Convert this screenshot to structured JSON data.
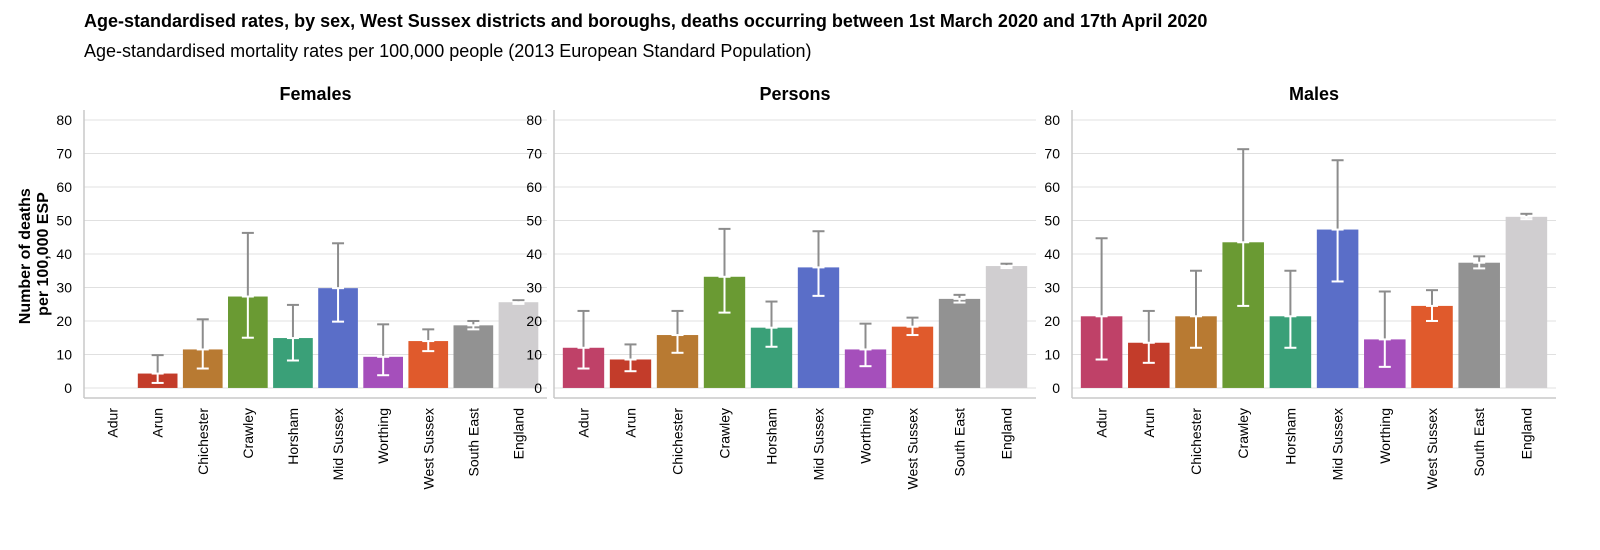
{
  "chart_data": {
    "type": "bar",
    "title": "Age-standardised rates, by sex, West Sussex districts and boroughs, deaths occurring between 1st March 2020 and 17th April 2020",
    "subtitle": "Age-standardised mortality rates per 100,000 people (2013 European Standard Population)",
    "ylabel_line1": "Number of deaths",
    "ylabel_line2": "per 100,000 ESP",
    "xlabel": "",
    "ylim": [
      -3,
      83
    ],
    "yticks": [
      0,
      10,
      20,
      30,
      40,
      50,
      60,
      70,
      80
    ],
    "grid": true,
    "legend": "none",
    "categories": [
      "Adur",
      "Arun",
      "Chichester",
      "Crawley",
      "Horsham",
      "Mid Sussex",
      "Worthing",
      "West Sussex",
      "South East",
      "England"
    ],
    "colors": [
      "#bf4168",
      "#c33c2a",
      "#b87a32",
      "#6a9a33",
      "#3aa078",
      "#5a6ec8",
      "#a54fbb",
      "#e05a2c",
      "#929292",
      "#d0ced0"
    ],
    "panels": [
      {
        "title": "Females",
        "values": [
          null,
          4.3,
          11.5,
          27.3,
          14.9,
          29.8,
          9.3,
          14.0,
          18.7,
          25.6
        ],
        "lower": [
          null,
          1.5,
          5.8,
          15.0,
          8.2,
          19.8,
          3.8,
          11.0,
          17.5,
          25.1
        ],
        "upper": [
          null,
          9.8,
          20.5,
          46.3,
          24.8,
          43.2,
          19.0,
          17.5,
          20.0,
          26.2
        ]
      },
      {
        "title": "Persons",
        "values": [
          12.0,
          8.5,
          15.8,
          33.2,
          18.0,
          36.0,
          11.5,
          18.3,
          26.6,
          36.4
        ],
        "lower": [
          5.8,
          5.0,
          10.5,
          22.5,
          12.3,
          27.5,
          6.5,
          15.8,
          25.5,
          35.8
        ],
        "upper": [
          23.0,
          13.0,
          23.0,
          47.5,
          25.8,
          46.8,
          19.2,
          21.0,
          27.8,
          37.1
        ]
      },
      {
        "title": "Males",
        "values": [
          21.4,
          13.5,
          21.4,
          43.5,
          21.4,
          47.3,
          14.5,
          24.5,
          37.4,
          51.1
        ],
        "lower": [
          8.5,
          7.5,
          12.0,
          24.5,
          12.0,
          31.8,
          6.3,
          20.0,
          35.7,
          50.4
        ],
        "upper": [
          44.7,
          23.0,
          35.0,
          71.3,
          35.0,
          68.0,
          28.8,
          29.2,
          39.3,
          52.0
        ]
      }
    ]
  }
}
